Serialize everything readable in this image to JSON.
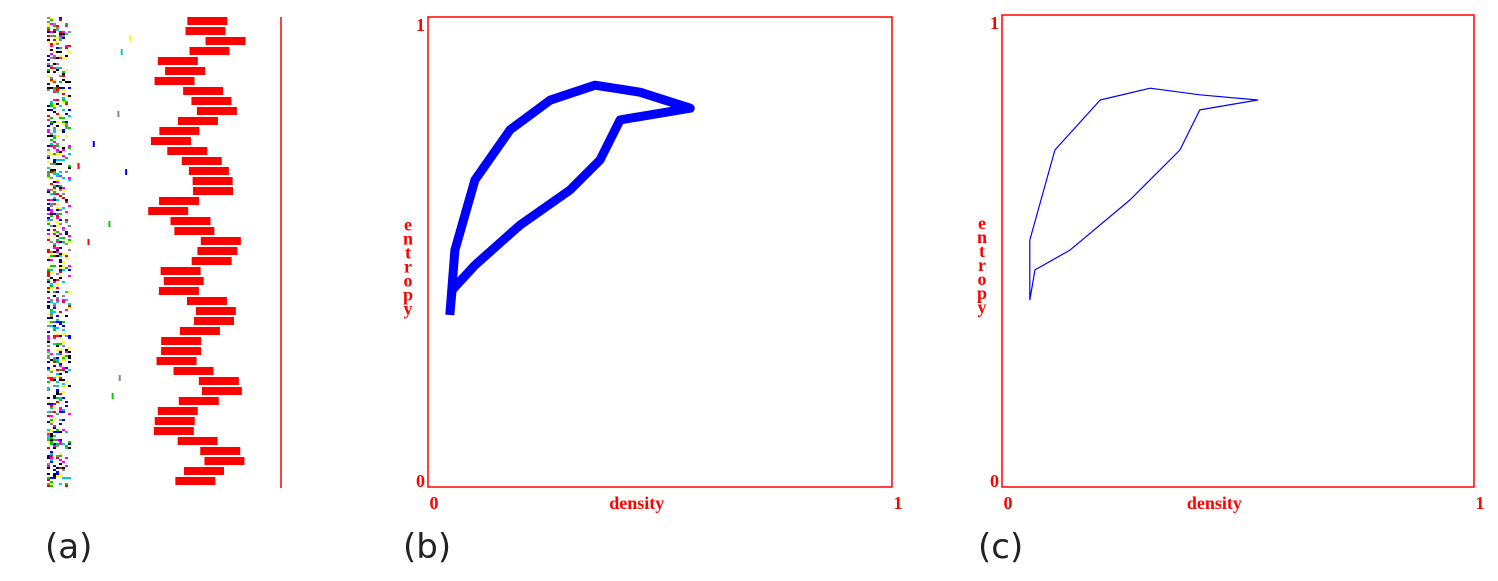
{
  "chart_data": [
    {
      "type": "line",
      "xlabel": "density",
      "ylabel": "entropy",
      "xlim": [
        0,
        1
      ],
      "ylim": [
        0,
        1
      ],
      "xticks": [
        0,
        1
      ],
      "yticks": [
        0,
        1
      ],
      "color": "#0000ff",
      "axis_color": "#ff0000",
      "line_width": 9,
      "x": [
        0.047,
        0.058,
        0.101,
        0.177,
        0.263,
        0.36,
        0.457,
        0.565,
        0.414,
        0.371,
        0.306,
        0.198,
        0.101,
        0.052,
        0.047
      ],
      "y": [
        0.366,
        0.504,
        0.653,
        0.76,
        0.823,
        0.855,
        0.84,
        0.806,
        0.781,
        0.696,
        0.632,
        0.557,
        0.472,
        0.419,
        0.366
      ]
    },
    {
      "type": "line",
      "xlabel": "density",
      "ylabel": "entropy",
      "xlim": [
        0,
        1
      ],
      "ylim": [
        0,
        1
      ],
      "xticks": [
        0,
        1
      ],
      "yticks": [
        0,
        1
      ],
      "color": "#0000ff",
      "axis_color": "#ff0000",
      "line_width": 1.2,
      "x": [
        0.059,
        0.059,
        0.112,
        0.208,
        0.314,
        0.419,
        0.542,
        0.419,
        0.377,
        0.271,
        0.144,
        0.07,
        0.059
      ],
      "y": [
        0.396,
        0.523,
        0.714,
        0.82,
        0.845,
        0.831,
        0.82,
        0.799,
        0.714,
        0.608,
        0.502,
        0.46,
        0.396
      ]
    }
  ],
  "panel_labels": [
    "(a)",
    "(b)",
    "(c)"
  ]
}
